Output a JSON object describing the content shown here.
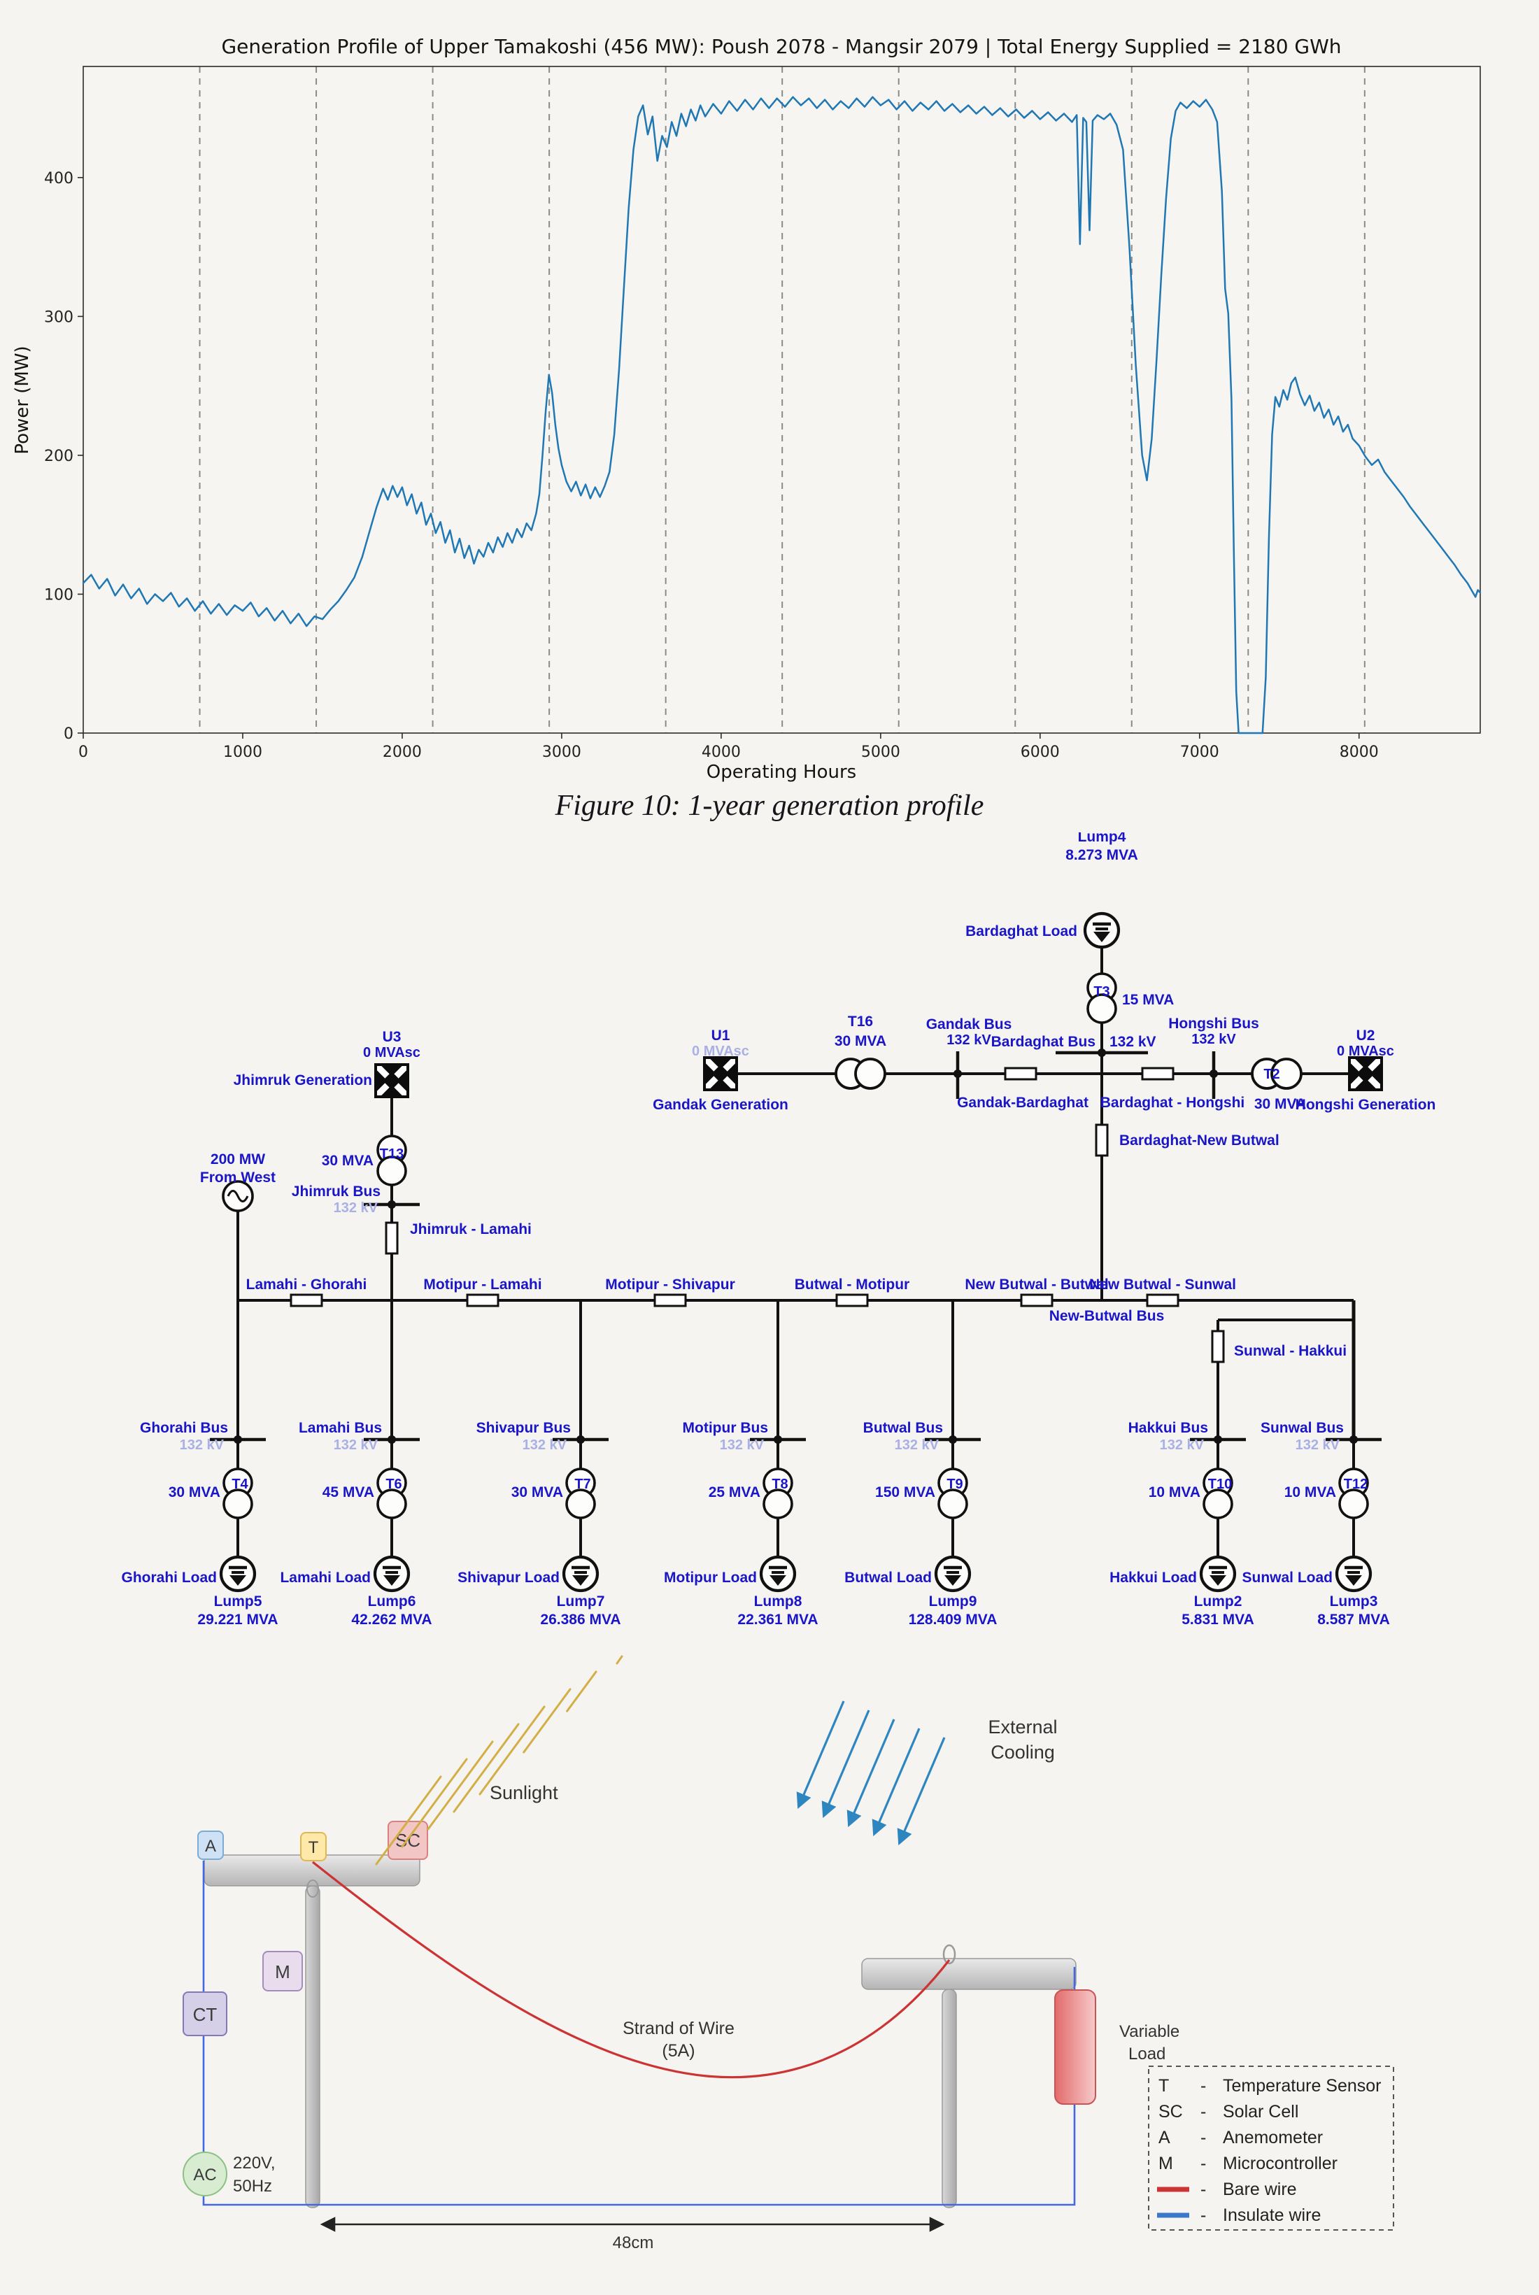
{
  "colors": {
    "page_bg": "#f5f4f1",
    "chart_line": "#1f77b4",
    "grid": "#8a8a8a",
    "axis": "#2b2b2b",
    "sld_label": "#1a16c8",
    "sld_faded": "#a9b0e6",
    "sld_line": "#111111",
    "bare_wire": "#cc3333",
    "insulated_wire": "#4468dd",
    "sun_ray": "#d2ae45",
    "cooling_arrow": "#2e86c1"
  },
  "chart": {
    "title": "Generation Profile of Upper Tamakoshi (456 MW): Poush 2078 - Mangsir 2079   |   Total Energy Supplied = 2180 GWh",
    "xlabel": "Operating Hours",
    "ylabel": "Power (MW)",
    "xticks": [
      0,
      1000,
      2000,
      3000,
      4000,
      5000,
      6000,
      7000,
      8000
    ],
    "yticks": [
      0,
      100,
      200,
      300,
      400
    ]
  },
  "chart_data": {
    "type": "line",
    "title": "Generation Profile of Upper Tamakoshi (456 MW): Poush 2078 - Mangsir 2079 | Total Energy Supplied = 2180 GWh",
    "xlabel": "Operating Hours",
    "ylabel": "Power (MW)",
    "xlim": [
      0,
      8760
    ],
    "ylim": [
      0,
      480
    ],
    "grid": "vertical dashed lines at monthly boundaries (every 730.5 hours)",
    "legend_position": "none",
    "total_energy_supplied_gwh": 2180,
    "installed_capacity_mw": 456,
    "period": "Poush 2078 - Mangsir 2079",
    "points": [
      [
        0,
        108
      ],
      [
        50,
        114
      ],
      [
        100,
        104
      ],
      [
        150,
        111
      ],
      [
        200,
        99
      ],
      [
        250,
        107
      ],
      [
        300,
        97
      ],
      [
        350,
        104
      ],
      [
        400,
        93
      ],
      [
        450,
        100
      ],
      [
        500,
        95
      ],
      [
        550,
        101
      ],
      [
        600,
        91
      ],
      [
        650,
        97
      ],
      [
        700,
        88
      ],
      [
        750,
        95
      ],
      [
        800,
        86
      ],
      [
        850,
        93
      ],
      [
        900,
        85
      ],
      [
        950,
        92
      ],
      [
        1000,
        88
      ],
      [
        1050,
        94
      ],
      [
        1100,
        84
      ],
      [
        1150,
        90
      ],
      [
        1200,
        81
      ],
      [
        1250,
        88
      ],
      [
        1300,
        79
      ],
      [
        1350,
        86
      ],
      [
        1400,
        77
      ],
      [
        1450,
        84
      ],
      [
        1500,
        82
      ],
      [
        1550,
        89
      ],
      [
        1600,
        95
      ],
      [
        1650,
        103
      ],
      [
        1700,
        112
      ],
      [
        1750,
        127
      ],
      [
        1800,
        147
      ],
      [
        1840,
        163
      ],
      [
        1880,
        176
      ],
      [
        1910,
        168
      ],
      [
        1940,
        178
      ],
      [
        1970,
        170
      ],
      [
        2000,
        177
      ],
      [
        2030,
        164
      ],
      [
        2060,
        172
      ],
      [
        2090,
        158
      ],
      [
        2120,
        166
      ],
      [
        2150,
        150
      ],
      [
        2180,
        158
      ],
      [
        2210,
        144
      ],
      [
        2240,
        152
      ],
      [
        2270,
        137
      ],
      [
        2300,
        146
      ],
      [
        2330,
        130
      ],
      [
        2360,
        140
      ],
      [
        2390,
        126
      ],
      [
        2420,
        135
      ],
      [
        2450,
        122
      ],
      [
        2480,
        132
      ],
      [
        2510,
        127
      ],
      [
        2540,
        137
      ],
      [
        2570,
        130
      ],
      [
        2600,
        141
      ],
      [
        2630,
        134
      ],
      [
        2660,
        144
      ],
      [
        2690,
        137
      ],
      [
        2720,
        147
      ],
      [
        2750,
        141
      ],
      [
        2780,
        151
      ],
      [
        2810,
        146
      ],
      [
        2840,
        158
      ],
      [
        2860,
        172
      ],
      [
        2880,
        200
      ],
      [
        2900,
        232
      ],
      [
        2920,
        258
      ],
      [
        2940,
        245
      ],
      [
        2960,
        222
      ],
      [
        2980,
        205
      ],
      [
        3000,
        193
      ],
      [
        3030,
        181
      ],
      [
        3060,
        174
      ],
      [
        3090,
        181
      ],
      [
        3120,
        171
      ],
      [
        3150,
        179
      ],
      [
        3180,
        169
      ],
      [
        3210,
        177
      ],
      [
        3240,
        170
      ],
      [
        3270,
        178
      ],
      [
        3300,
        188
      ],
      [
        3330,
        215
      ],
      [
        3360,
        262
      ],
      [
        3390,
        320
      ],
      [
        3420,
        378
      ],
      [
        3450,
        420
      ],
      [
        3480,
        444
      ],
      [
        3510,
        452
      ],
      [
        3540,
        431
      ],
      [
        3570,
        444
      ],
      [
        3600,
        412
      ],
      [
        3630,
        430
      ],
      [
        3660,
        422
      ],
      [
        3690,
        440
      ],
      [
        3720,
        430
      ],
      [
        3750,
        446
      ],
      [
        3780,
        437
      ],
      [
        3810,
        449
      ],
      [
        3840,
        441
      ],
      [
        3870,
        452
      ],
      [
        3900,
        444
      ],
      [
        3950,
        453
      ],
      [
        4000,
        446
      ],
      [
        4050,
        455
      ],
      [
        4100,
        448
      ],
      [
        4150,
        456
      ],
      [
        4200,
        449
      ],
      [
        4250,
        457
      ],
      [
        4300,
        450
      ],
      [
        4350,
        457
      ],
      [
        4400,
        451
      ],
      [
        4450,
        458
      ],
      [
        4500,
        452
      ],
      [
        4550,
        457
      ],
      [
        4600,
        450
      ],
      [
        4650,
        456
      ],
      [
        4700,
        449
      ],
      [
        4750,
        455
      ],
      [
        4800,
        450
      ],
      [
        4850,
        457
      ],
      [
        4900,
        451
      ],
      [
        4950,
        458
      ],
      [
        5000,
        452
      ],
      [
        5050,
        456
      ],
      [
        5100,
        449
      ],
      [
        5150,
        455
      ],
      [
        5200,
        448
      ],
      [
        5250,
        454
      ],
      [
        5300,
        449
      ],
      [
        5350,
        455
      ],
      [
        5400,
        448
      ],
      [
        5450,
        453
      ],
      [
        5500,
        447
      ],
      [
        5550,
        452
      ],
      [
        5600,
        446
      ],
      [
        5650,
        451
      ],
      [
        5700,
        445
      ],
      [
        5750,
        450
      ],
      [
        5800,
        444
      ],
      [
        5850,
        449
      ],
      [
        5900,
        443
      ],
      [
        5950,
        448
      ],
      [
        6000,
        442
      ],
      [
        6050,
        447
      ],
      [
        6100,
        441
      ],
      [
        6150,
        446
      ],
      [
        6200,
        440
      ],
      [
        6230,
        445
      ],
      [
        6250,
        352
      ],
      [
        6270,
        443
      ],
      [
        6290,
        440
      ],
      [
        6310,
        362
      ],
      [
        6330,
        441
      ],
      [
        6360,
        445
      ],
      [
        6400,
        442
      ],
      [
        6440,
        446
      ],
      [
        6480,
        438
      ],
      [
        6520,
        420
      ],
      [
        6560,
        350
      ],
      [
        6600,
        265
      ],
      [
        6640,
        200
      ],
      [
        6670,
        182
      ],
      [
        6700,
        212
      ],
      [
        6730,
        268
      ],
      [
        6760,
        330
      ],
      [
        6790,
        385
      ],
      [
        6820,
        428
      ],
      [
        6850,
        448
      ],
      [
        6880,
        454
      ],
      [
        6920,
        450
      ],
      [
        6960,
        455
      ],
      [
        7000,
        451
      ],
      [
        7040,
        456
      ],
      [
        7080,
        449
      ],
      [
        7110,
        440
      ],
      [
        7140,
        390
      ],
      [
        7160,
        320
      ],
      [
        7180,
        302
      ],
      [
        7200,
        240
      ],
      [
        7215,
        130
      ],
      [
        7230,
        30
      ],
      [
        7245,
        0
      ],
      [
        7280,
        0
      ],
      [
        7320,
        0
      ],
      [
        7360,
        0
      ],
      [
        7395,
        0
      ],
      [
        7415,
        40
      ],
      [
        7435,
        140
      ],
      [
        7455,
        215
      ],
      [
        7475,
        242
      ],
      [
        7500,
        235
      ],
      [
        7525,
        247
      ],
      [
        7550,
        240
      ],
      [
        7575,
        252
      ],
      [
        7600,
        256
      ],
      [
        7630,
        244
      ],
      [
        7660,
        236
      ],
      [
        7690,
        243
      ],
      [
        7720,
        232
      ],
      [
        7750,
        238
      ],
      [
        7780,
        227
      ],
      [
        7810,
        233
      ],
      [
        7840,
        222
      ],
      [
        7870,
        228
      ],
      [
        7900,
        217
      ],
      [
        7930,
        222
      ],
      [
        7960,
        212
      ],
      [
        8000,
        207
      ],
      [
        8040,
        199
      ],
      [
        8080,
        193
      ],
      [
        8120,
        197
      ],
      [
        8160,
        188
      ],
      [
        8200,
        182
      ],
      [
        8240,
        176
      ],
      [
        8280,
        170
      ],
      [
        8320,
        163
      ],
      [
        8360,
        157
      ],
      [
        8400,
        151
      ],
      [
        8440,
        145
      ],
      [
        8480,
        139
      ],
      [
        8520,
        133
      ],
      [
        8560,
        127
      ],
      [
        8600,
        121
      ],
      [
        8640,
        114
      ],
      [
        8680,
        108
      ],
      [
        8710,
        102
      ],
      [
        8730,
        98
      ],
      [
        8745,
        103
      ],
      [
        8760,
        101
      ]
    ]
  },
  "caption": "Figure 10: 1-year generation profile",
  "sld": {
    "top_load": {
      "lump": "Lump4",
      "mva": "8.273 MVA",
      "name": "Bardaghat Load"
    },
    "t3": {
      "id": "T3",
      "rating": "15 MVA"
    },
    "bardaghat_bus": {
      "name": "Bardaghat Bus",
      "kv": "132 kV"
    },
    "gandak_bus": {
      "name": "Gandak Bus",
      "kv": "132 kV"
    },
    "hongshi_bus": {
      "name": "Hongshi Bus",
      "kv": "132 kV"
    },
    "jhimruk_bus": {
      "name": "Jhimruk Bus",
      "kv": "132 kV"
    },
    "u1": {
      "id": "U1",
      "sub": "0 MVAsc",
      "name": "Gandak Generation"
    },
    "u2": {
      "id": "U2",
      "sub": "0 MVAsc",
      "name": "Hongshi Generation"
    },
    "u3": {
      "id": "U3",
      "sub": "0 MVAsc",
      "name": "Jhimruk Generation"
    },
    "t16": {
      "id": "T16",
      "rating": "30 MVA"
    },
    "t2": {
      "id": "T2",
      "rating": "30 MVA"
    },
    "t13": {
      "id": "T13",
      "rating": "30 MVA"
    },
    "source": {
      "line1": "200 MW",
      "line2": "From West"
    },
    "line_gandak_bardaghat": "Gandak-Bardaghat",
    "line_bardaghat_hongshi": "Bardaghat - Hongshi",
    "line_bardaghat_newbutwal": "Bardaghat-New Butwal",
    "line_jhimruk_lamahi": "Jhimruk - Lamahi",
    "trunk_labels": [
      "Lamahi - Ghorahi",
      "Motipur - Lamahi",
      "Motipur - Shivapur",
      "Butwal - Motipur",
      "New Butwal - Butwal",
      "New Butwal - Sunwal"
    ],
    "line_sunwal_hakkui": "Sunwal - Hakkui",
    "newbutwal_bus": "New-Butwal Bus",
    "feeders": [
      {
        "bus": "Ghorahi Bus",
        "kv": "132 kV",
        "tx": "T4",
        "rating": "30 MVA",
        "load": "Ghorahi Load",
        "lump": "Lump5",
        "mva": "29.221 MVA"
      },
      {
        "bus": "Lamahi Bus",
        "kv": "132 kV",
        "tx": "T6",
        "rating": "45 MVA",
        "load": "Lamahi Load",
        "lump": "Lump6",
        "mva": "42.262 MVA"
      },
      {
        "bus": "Shivapur Bus",
        "kv": "132 kV",
        "tx": "T7",
        "rating": "30 MVA",
        "load": "Shivapur Load",
        "lump": "Lump7",
        "mva": "26.386 MVA"
      },
      {
        "bus": "Motipur Bus",
        "kv": "132 kV",
        "tx": "T8",
        "rating": "25 MVA",
        "load": "Motipur Load",
        "lump": "Lump8",
        "mva": "22.361 MVA"
      },
      {
        "bus": "Butwal Bus",
        "kv": "132 kV",
        "tx": "T9",
        "rating": "150 MVA",
        "load": "Butwal Load",
        "lump": "Lump9",
        "mva": "128.409 MVA"
      },
      {
        "bus": "Hakkui Bus",
        "kv": "132 kV",
        "tx": "T10",
        "rating": "10 MVA",
        "load": "Hakkui Load",
        "lump": "Lump2",
        "mva": "5.831 MVA"
      },
      {
        "bus": "Sunwal Bus",
        "kv": "132 kV",
        "tx": "T12",
        "rating": "10 MVA",
        "load": "Sunwal Load",
        "lump": "Lump3",
        "mva": "8.587 MVA"
      }
    ]
  },
  "experiment": {
    "sunlight": "Sunlight",
    "cooling_line1": "External",
    "cooling_line2": "Cooling",
    "wire_label_line1": "Strand of Wire",
    "wire_label_line2": "(5A)",
    "boxes": {
      "a": "A",
      "t": "T",
      "sc": "SC",
      "m": "M",
      "ct": "CT",
      "ac": "AC"
    },
    "supply_line1": "220V,",
    "supply_line2": "50Hz",
    "load_line1": "Variable",
    "load_line2": "Load",
    "dimension": "48cm",
    "legend": [
      {
        "key": "T",
        "sep": "-",
        "label": "Temperature Sensor",
        "swatch": null
      },
      {
        "key": "SC",
        "sep": "-",
        "label": "Solar Cell",
        "swatch": null
      },
      {
        "key": "A",
        "sep": "-",
        "label": "Anemometer",
        "swatch": null
      },
      {
        "key": "M",
        "sep": "-",
        "label": "Microcontroller",
        "swatch": null
      },
      {
        "key": null,
        "sep": "-",
        "label": "Bare wire",
        "swatch": "#cc3333"
      },
      {
        "key": null,
        "sep": "-",
        "label": "Insulate wire",
        "swatch": "#3a78c9"
      }
    ]
  }
}
